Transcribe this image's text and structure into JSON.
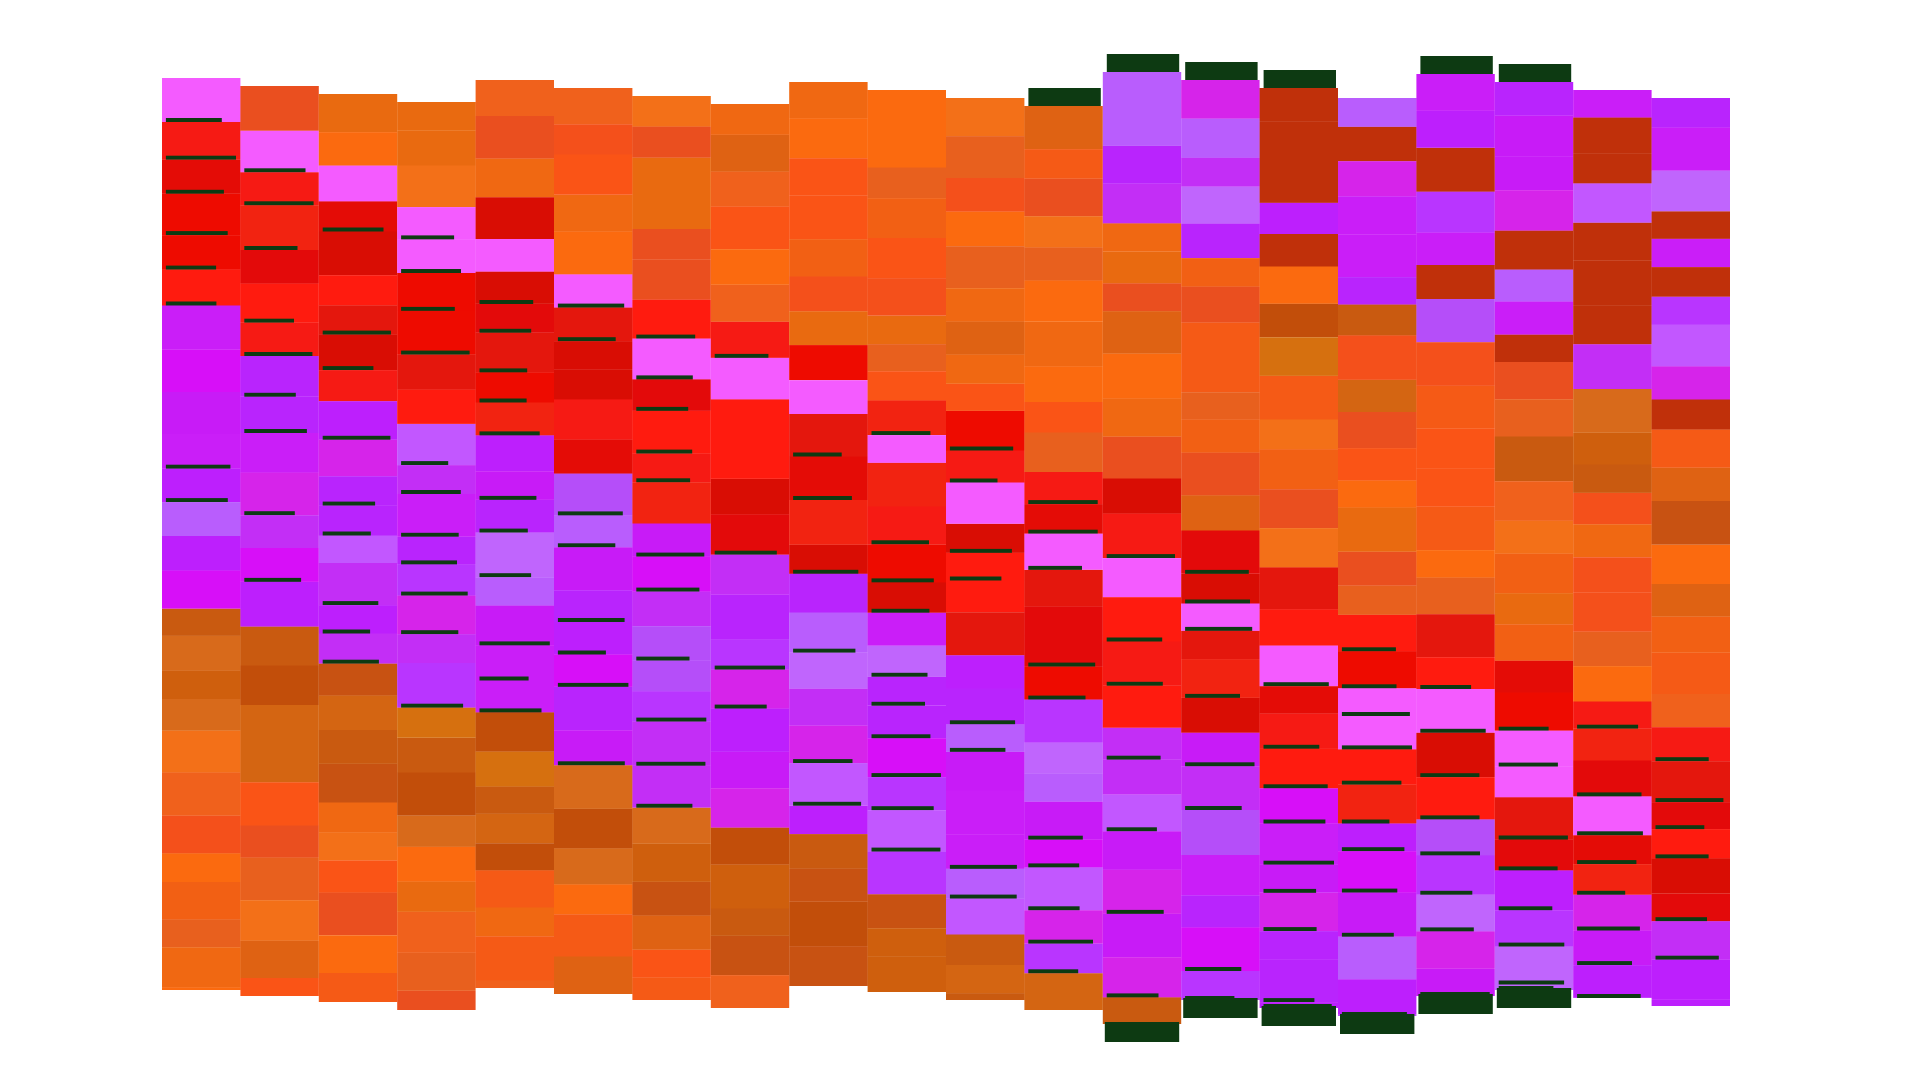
{
  "artwork": {
    "columns": 20,
    "palette": {
      "reds": [
        "#e4170d",
        "#ee0b00",
        "#f22311",
        "#e40c06",
        "#f61a14",
        "#ff1b0f",
        "#d90d04",
        "#e30a0a"
      ],
      "oranges": [
        "#f55a16",
        "#f0611c",
        "#f06812",
        "#e8601e",
        "#fa5416",
        "#f26014",
        "#ea4f1f",
        "#f37018",
        "#e96a10",
        "#f4501b",
        "#df6213",
        "#fb6a0f"
      ],
      "rusts": [
        "#c95a10",
        "#d46512",
        "#c24e0a",
        "#d6700f",
        "#c85212",
        "#d86a1b",
        "#cf5f0d"
      ],
      "purples": [
        "#c81bf7",
        "#b924fd",
        "#d70ff8",
        "#c32ef6",
        "#bd1ffd",
        "#d624ea",
        "#b935ff",
        "#ca1ef8"
      ],
      "lavenders": [
        "#b95dfd",
        "#c065fd",
        "#b54ef9",
        "#c257ff"
      ],
      "highlight": "#f45bff",
      "darkgreen": "#0d3a12",
      "maroon": "#c0300a"
    }
  }
}
